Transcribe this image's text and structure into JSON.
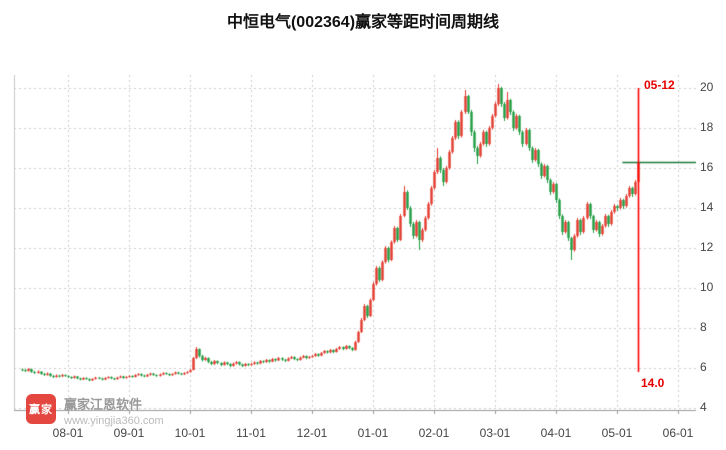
{
  "header": {
    "title": "中恒电气(002364)赢家等距时间周期线"
  },
  "watermark": {
    "logo_text": "赢家",
    "name": "赢家江恩软件",
    "url": "www.yingjia360.com"
  },
  "annotations": {
    "cycle_date": "05-12",
    "cycle_price": "14.0"
  },
  "colors": {
    "up": "#e23a2e",
    "down": "#1f9c40",
    "cycle_line": "#ff0000",
    "level_line": "#1b7a3a",
    "grid": "#cccccc",
    "axis_text": "#454545",
    "annotation_red": "#e60000"
  },
  "chart_data": {
    "type": "candlestick",
    "title": "中恒电气(002364)赢家等距时间周期线",
    "x_tick_labels": [
      "08-01",
      "09-01",
      "10-01",
      "11-01",
      "12-01",
      "01-01",
      "02-01",
      "03-01",
      "04-01",
      "05-01",
      "06-01"
    ],
    "y_tick_labels": [
      4,
      6,
      8,
      10,
      12,
      14,
      16,
      18,
      20
    ],
    "y_range": [
      4,
      20
    ],
    "grid": "dotted",
    "x_tick_start_index": 15,
    "candles_per_month": 20,
    "level_line_value": 16.3,
    "cycle_line_index": 202,
    "cycle_line_date": "05-12",
    "candles": [
      [
        5.92,
        5.98,
        5.84,
        5.9
      ],
      [
        5.9,
        5.94,
        5.8,
        5.85
      ],
      [
        5.85,
        5.99,
        5.82,
        5.95
      ],
      [
        5.95,
        5.97,
        5.76,
        5.8
      ],
      [
        5.8,
        5.86,
        5.7,
        5.75
      ],
      [
        5.75,
        5.88,
        5.72,
        5.82
      ],
      [
        5.82,
        5.84,
        5.66,
        5.7
      ],
      [
        5.7,
        5.76,
        5.6,
        5.65
      ],
      [
        5.65,
        5.78,
        5.62,
        5.72
      ],
      [
        5.72,
        5.74,
        5.56,
        5.6
      ],
      [
        5.6,
        5.65,
        5.5,
        5.55
      ],
      [
        5.55,
        5.68,
        5.52,
        5.62
      ],
      [
        5.62,
        5.66,
        5.53,
        5.58
      ],
      [
        5.58,
        5.7,
        5.55,
        5.65
      ],
      [
        5.65,
        5.68,
        5.56,
        5.6
      ],
      [
        5.6,
        5.63,
        5.5,
        5.55
      ],
      [
        5.55,
        5.58,
        5.45,
        5.5
      ],
      [
        5.5,
        5.62,
        5.47,
        5.58
      ],
      [
        5.58,
        5.6,
        5.44,
        5.48
      ],
      [
        5.48,
        5.52,
        5.38,
        5.42
      ],
      [
        5.42,
        5.54,
        5.4,
        5.5
      ],
      [
        5.5,
        5.53,
        5.41,
        5.45
      ],
      [
        5.45,
        5.48,
        5.34,
        5.38
      ],
      [
        5.38,
        5.49,
        5.35,
        5.45
      ],
      [
        5.45,
        5.56,
        5.42,
        5.52
      ],
      [
        5.52,
        5.55,
        5.44,
        5.48
      ],
      [
        5.48,
        5.51,
        5.38,
        5.42
      ],
      [
        5.42,
        5.54,
        5.4,
        5.5
      ],
      [
        5.5,
        5.59,
        5.47,
        5.55
      ],
      [
        5.55,
        5.58,
        5.44,
        5.48
      ],
      [
        5.48,
        5.51,
        5.4,
        5.44
      ],
      [
        5.44,
        5.56,
        5.42,
        5.52
      ],
      [
        5.52,
        5.62,
        5.49,
        5.58
      ],
      [
        5.58,
        5.61,
        5.46,
        5.5
      ],
      [
        5.5,
        5.59,
        5.47,
        5.55
      ],
      [
        5.55,
        5.64,
        5.52,
        5.6
      ],
      [
        5.6,
        5.63,
        5.51,
        5.55
      ],
      [
        5.55,
        5.69,
        5.53,
        5.65
      ],
      [
        5.65,
        5.74,
        5.61,
        5.7
      ],
      [
        5.7,
        5.73,
        5.58,
        5.62
      ],
      [
        5.62,
        5.66,
        5.54,
        5.58
      ],
      [
        5.58,
        5.7,
        5.55,
        5.66
      ],
      [
        5.66,
        5.76,
        5.62,
        5.72
      ],
      [
        5.72,
        5.75,
        5.61,
        5.65
      ],
      [
        5.65,
        5.68,
        5.56,
        5.6
      ],
      [
        5.6,
        5.72,
        5.57,
        5.68
      ],
      [
        5.68,
        5.79,
        5.64,
        5.75
      ],
      [
        5.75,
        5.78,
        5.66,
        5.7
      ],
      [
        5.7,
        5.73,
        5.6,
        5.64
      ],
      [
        5.64,
        5.74,
        5.61,
        5.7
      ],
      [
        5.7,
        5.82,
        5.67,
        5.78
      ],
      [
        5.78,
        5.81,
        5.68,
        5.72
      ],
      [
        5.72,
        5.75,
        5.64,
        5.68
      ],
      [
        5.68,
        5.79,
        5.65,
        5.75
      ],
      [
        5.75,
        5.84,
        5.71,
        5.8
      ],
      [
        5.8,
        5.94,
        5.77,
        5.9
      ],
      [
        5.9,
        6.55,
        5.88,
        6.5
      ],
      [
        6.5,
        7.05,
        6.45,
        6.95
      ],
      [
        6.95,
        6.98,
        6.52,
        6.6
      ],
      [
        6.6,
        6.66,
        6.32,
        6.4
      ],
      [
        6.4,
        6.56,
        6.36,
        6.5
      ],
      [
        6.5,
        6.53,
        6.24,
        6.3
      ],
      [
        6.3,
        6.36,
        6.14,
        6.2
      ],
      [
        6.2,
        6.4,
        6.16,
        6.35
      ],
      [
        6.35,
        6.38,
        6.19,
        6.25
      ],
      [
        6.25,
        6.29,
        6.09,
        6.15
      ],
      [
        6.15,
        6.33,
        6.12,
        6.28
      ],
      [
        6.28,
        6.31,
        6.14,
        6.2
      ],
      [
        6.2,
        6.24,
        6.04,
        6.1
      ],
      [
        6.1,
        6.27,
        6.07,
        6.22
      ],
      [
        6.22,
        6.35,
        6.18,
        6.3
      ],
      [
        6.3,
        6.33,
        6.12,
        6.18
      ],
      [
        6.18,
        6.22,
        6.04,
        6.1
      ],
      [
        6.1,
        6.25,
        6.07,
        6.2
      ],
      [
        6.2,
        6.24,
        6.09,
        6.15
      ],
      [
        6.15,
        6.26,
        6.11,
        6.2
      ],
      [
        6.2,
        6.33,
        6.16,
        6.28
      ],
      [
        6.28,
        6.31,
        6.16,
        6.22
      ],
      [
        6.22,
        6.4,
        6.19,
        6.35
      ],
      [
        6.35,
        6.38,
        6.24,
        6.3
      ],
      [
        6.3,
        6.45,
        6.26,
        6.4
      ],
      [
        6.4,
        6.43,
        6.26,
        6.32
      ],
      [
        6.32,
        6.5,
        6.29,
        6.45
      ],
      [
        6.45,
        6.48,
        6.32,
        6.38
      ],
      [
        6.38,
        6.55,
        6.35,
        6.5
      ],
      [
        6.5,
        6.53,
        6.36,
        6.42
      ],
      [
        6.42,
        6.45,
        6.3,
        6.36
      ],
      [
        6.36,
        6.53,
        6.33,
        6.48
      ],
      [
        6.48,
        6.6,
        6.44,
        6.55
      ],
      [
        6.55,
        6.58,
        6.39,
        6.45
      ],
      [
        6.45,
        6.48,
        6.34,
        6.4
      ],
      [
        6.4,
        6.57,
        6.37,
        6.52
      ],
      [
        6.52,
        6.65,
        6.48,
        6.6
      ],
      [
        6.6,
        6.63,
        6.44,
        6.5
      ],
      [
        6.5,
        6.6,
        6.46,
        6.55
      ],
      [
        6.55,
        6.66,
        6.51,
        6.6
      ],
      [
        6.6,
        6.75,
        6.56,
        6.7
      ],
      [
        6.7,
        6.73,
        6.56,
        6.62
      ],
      [
        6.62,
        6.8,
        6.59,
        6.75
      ],
      [
        6.75,
        6.9,
        6.71,
        6.85
      ],
      [
        6.85,
        6.88,
        6.72,
        6.78
      ],
      [
        6.78,
        6.95,
        6.74,
        6.9
      ],
      [
        6.9,
        6.93,
        6.74,
        6.8
      ],
      [
        6.8,
        7.0,
        6.77,
        6.95
      ],
      [
        6.95,
        7.1,
        6.91,
        7.05
      ],
      [
        7.05,
        7.08,
        6.89,
        6.95
      ],
      [
        6.95,
        7.15,
        6.92,
        7.1
      ],
      [
        7.1,
        7.13,
        6.94,
        7.0
      ],
      [
        7.0,
        7.04,
        6.84,
        6.9
      ],
      [
        6.9,
        7.36,
        6.87,
        7.3
      ],
      [
        7.3,
        7.86,
        7.26,
        7.8
      ],
      [
        7.8,
        8.5,
        7.75,
        8.4
      ],
      [
        8.4,
        9.2,
        8.34,
        9.1
      ],
      [
        9.1,
        9.16,
        8.5,
        8.6
      ],
      [
        8.6,
        9.48,
        8.55,
        9.4
      ],
      [
        9.4,
        10.3,
        9.35,
        10.2
      ],
      [
        10.2,
        11.1,
        10.12,
        11.0
      ],
      [
        11.0,
        11.08,
        10.3,
        10.4
      ],
      [
        10.4,
        11.38,
        10.34,
        11.3
      ],
      [
        11.3,
        12.1,
        11.22,
        12.0
      ],
      [
        12.0,
        12.06,
        11.28,
        11.4
      ],
      [
        11.4,
        12.38,
        11.34,
        12.3
      ],
      [
        12.3,
        13.1,
        12.22,
        13.0
      ],
      [
        13.0,
        13.06,
        12.3,
        12.4
      ],
      [
        12.4,
        13.7,
        12.35,
        13.6
      ],
      [
        13.6,
        15.1,
        13.54,
        14.8
      ],
      [
        14.8,
        14.88,
        13.9,
        14.0
      ],
      [
        14.0,
        14.1,
        13.05,
        13.2
      ],
      [
        13.2,
        13.3,
        12.45,
        12.6
      ],
      [
        12.6,
        13.4,
        12.52,
        13.3
      ],
      [
        13.3,
        13.36,
        11.9,
        12.4
      ],
      [
        12.4,
        13.0,
        12.3,
        12.9
      ],
      [
        12.9,
        13.6,
        12.82,
        13.5
      ],
      [
        13.5,
        14.3,
        13.42,
        14.2
      ],
      [
        14.2,
        15.1,
        14.12,
        15.0
      ],
      [
        15.0,
        15.9,
        14.92,
        15.8
      ],
      [
        15.8,
        17.0,
        15.7,
        16.5
      ],
      [
        16.5,
        16.58,
        15.75,
        15.9
      ],
      [
        15.9,
        16.0,
        15.1,
        15.3
      ],
      [
        15.3,
        16.1,
        15.22,
        16.0
      ],
      [
        16.0,
        16.9,
        15.92,
        16.8
      ],
      [
        16.8,
        17.6,
        16.72,
        17.5
      ],
      [
        17.5,
        18.4,
        17.4,
        18.3
      ],
      [
        18.3,
        18.38,
        17.45,
        17.6
      ],
      [
        17.6,
        18.9,
        17.52,
        18.8
      ],
      [
        18.8,
        19.9,
        18.7,
        19.6
      ],
      [
        19.6,
        19.66,
        18.7,
        18.8
      ],
      [
        18.8,
        18.9,
        17.6,
        17.8
      ],
      [
        17.8,
        17.9,
        16.8,
        17.0
      ],
      [
        17.0,
        17.1,
        16.2,
        16.6
      ],
      [
        16.6,
        17.3,
        16.52,
        17.2
      ],
      [
        17.2,
        17.9,
        17.12,
        17.8
      ],
      [
        17.8,
        17.86,
        17.05,
        17.2
      ],
      [
        17.2,
        18.1,
        17.12,
        18.0
      ],
      [
        18.0,
        18.7,
        17.92,
        18.6
      ],
      [
        18.6,
        19.3,
        18.52,
        19.2
      ],
      [
        19.2,
        20.2,
        19.1,
        20.0
      ],
      [
        20.0,
        20.06,
        19.05,
        19.2
      ],
      [
        19.2,
        19.3,
        18.35,
        18.5
      ],
      [
        18.5,
        19.8,
        18.42,
        19.4
      ],
      [
        19.4,
        19.46,
        18.65,
        18.8
      ],
      [
        18.8,
        18.88,
        17.85,
        18.0
      ],
      [
        18.0,
        18.7,
        17.92,
        18.6
      ],
      [
        18.6,
        18.66,
        17.65,
        17.8
      ],
      [
        17.8,
        17.88,
        17.05,
        17.2
      ],
      [
        17.2,
        18.0,
        17.12,
        17.9
      ],
      [
        17.9,
        17.96,
        16.85,
        17.0
      ],
      [
        17.0,
        17.08,
        16.25,
        16.4
      ],
      [
        16.4,
        17.0,
        16.32,
        16.9
      ],
      [
        16.9,
        16.96,
        16.05,
        16.2
      ],
      [
        16.2,
        16.28,
        15.45,
        15.6
      ],
      [
        15.6,
        16.2,
        15.52,
        16.1
      ],
      [
        16.1,
        16.16,
        15.25,
        15.4
      ],
      [
        15.4,
        15.48,
        14.65,
        14.8
      ],
      [
        14.8,
        15.3,
        14.72,
        15.2
      ],
      [
        15.2,
        15.26,
        14.25,
        14.4
      ],
      [
        14.4,
        14.48,
        13.45,
        13.6
      ],
      [
        13.6,
        13.68,
        12.65,
        12.8
      ],
      [
        12.8,
        13.4,
        12.72,
        13.3
      ],
      [
        13.3,
        13.36,
        12.35,
        12.5
      ],
      [
        12.5,
        12.56,
        11.4,
        11.9
      ],
      [
        11.9,
        12.7,
        11.82,
        12.6
      ],
      [
        12.6,
        13.5,
        12.52,
        13.4
      ],
      [
        13.4,
        13.46,
        12.65,
        12.8
      ],
      [
        12.8,
        13.6,
        12.72,
        13.5
      ],
      [
        13.5,
        14.3,
        13.42,
        14.2
      ],
      [
        14.2,
        14.26,
        13.45,
        13.6
      ],
      [
        13.6,
        13.66,
        12.75,
        12.9
      ],
      [
        12.9,
        13.4,
        12.82,
        13.3
      ],
      [
        13.3,
        13.36,
        12.55,
        12.7
      ],
      [
        12.7,
        13.2,
        12.62,
        13.1
      ],
      [
        13.1,
        13.7,
        13.02,
        13.6
      ],
      [
        13.6,
        13.66,
        13.05,
        13.2
      ],
      [
        13.2,
        13.9,
        13.12,
        13.8
      ],
      [
        13.8,
        14.2,
        13.72,
        14.1
      ],
      [
        14.1,
        14.16,
        13.85,
        14.0
      ],
      [
        14.0,
        14.5,
        13.92,
        14.4
      ],
      [
        14.4,
        14.46,
        13.95,
        14.1
      ],
      [
        14.1,
        14.7,
        14.02,
        14.6
      ],
      [
        14.6,
        15.1,
        14.52,
        15.0
      ],
      [
        15.0,
        15.06,
        14.55,
        14.7
      ],
      [
        14.7,
        15.4,
        14.62,
        15.3
      ],
      [
        15.3,
        16.45,
        15.22,
        16.3
      ]
    ]
  }
}
